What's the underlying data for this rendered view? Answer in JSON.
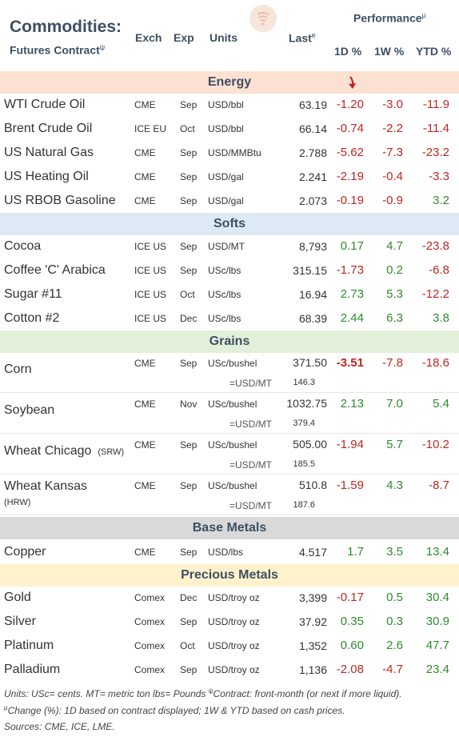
{
  "header": {
    "title": "Commodities:",
    "subtitle": "Futures Contract",
    "subtitle_mark": "ψ",
    "performance": "Performance",
    "performance_mark": "μ",
    "col_exch": "Exch",
    "col_exp": "Exp",
    "col_units": "Units",
    "col_last": "Last",
    "col_last_mark": "e",
    "col_1d": "1D %",
    "col_1w": "1W %",
    "col_ytd": "YTD %"
  },
  "colors": {
    "energy": "#fce0d2",
    "softs": "#ddeaf5",
    "grains": "#e2efd9",
    "base_metals": "#d9d9d9",
    "precious_metals": "#fff2cc",
    "negative": "#c0271f",
    "positive": "#2e8b2e"
  },
  "sections": {
    "energy": "Energy",
    "softs": "Softs",
    "grains": "Grains",
    "base_metals": "Base Metals",
    "precious_metals": "Precious Metals"
  },
  "energy": [
    {
      "name": "WTI Crude Oil",
      "exch": "CME",
      "exp": "Sep",
      "units": "USD/bbl",
      "last": "63.19",
      "d1": "-1.20",
      "w1": "-3.0",
      "ytd": "-11.9"
    },
    {
      "name": "Brent Crude Oil",
      "exch": "ICE EU",
      "exp": "Oct",
      "units": "USD/bbl",
      "last": "66.14",
      "d1": "-0.74",
      "w1": "-2.2",
      "ytd": "-11.4"
    },
    {
      "name": "US Natural Gas",
      "exch": "CME",
      "exp": "Sep",
      "units": "USD/MMBtu",
      "last": "2.788",
      "d1": "-5.62",
      "w1": "-7.3",
      "ytd": "-23.2"
    },
    {
      "name": "US Heating Oil",
      "exch": "CME",
      "exp": "Sep",
      "units": "USD/gal",
      "last": "2.241",
      "d1": "-2.19",
      "w1": "-0.4",
      "ytd": "-3.3"
    },
    {
      "name": "US RBOB Gasoline",
      "exch": "CME",
      "exp": "Sep",
      "units": "USD/gal",
      "last": "2.073",
      "d1": "-0.19",
      "w1": "-0.9",
      "ytd": "3.2"
    }
  ],
  "softs": [
    {
      "name": "Cocoa",
      "exch": "ICE US",
      "exp": "Sep",
      "units": "USD/MT",
      "last": "8,793",
      "d1": "0.17",
      "w1": "4.7",
      "ytd": "-23.8"
    },
    {
      "name": "Coffee 'C' Arabica",
      "exch": "ICE US",
      "exp": "Sep",
      "units": "USc/lbs",
      "last": "315.15",
      "d1": "-1.73",
      "w1": "0.2",
      "ytd": "-6.8"
    },
    {
      "name": "Sugar #11",
      "exch": "ICE US",
      "exp": "Oct",
      "units": "USc/lbs",
      "last": "16.94",
      "d1": "2.73",
      "w1": "5.3",
      "ytd": "-12.2"
    },
    {
      "name": "Cotton #2",
      "exch": "ICE US",
      "exp": "Dec",
      "units": "USc/lbs",
      "last": "68.39",
      "d1": "2.44",
      "w1": "6.3",
      "ytd": "3.8"
    }
  ],
  "grains": [
    {
      "name": "Corn",
      "tag": "",
      "exch": "CME",
      "exp": "Sep",
      "units": "USc/bushel",
      "last": "371.50",
      "d1": "-3.51",
      "w1": "-7.8",
      "ytd": "-18.6",
      "sub_label": "=USD/MT",
      "sub_value": "146.3"
    },
    {
      "name": "Soybean",
      "tag": "",
      "exch": "CME",
      "exp": "Nov",
      "units": "USc/bushel",
      "last": "1032.75",
      "d1": "2.13",
      "w1": "7.0",
      "ytd": "5.4",
      "sub_label": "=USD/MT",
      "sub_value": "379.4"
    },
    {
      "name": "Wheat Chicago",
      "tag": "(SRW)",
      "exch": "CME",
      "exp": "Sep",
      "units": "USc/bushel",
      "last": "505.00",
      "d1": "-1.94",
      "w1": "5.7",
      "ytd": "-10.2",
      "sub_label": "=USD/MT",
      "sub_value": "185.5"
    },
    {
      "name": "Wheat Kansas",
      "tag": "(HRW)",
      "exch": "CME",
      "exp": "Sep",
      "units": "USc/bushel",
      "last": "510.8",
      "d1": "-1.59",
      "w1": "4.3",
      "ytd": "-8.7",
      "sub_label": "=USD/MT",
      "sub_value": "187.6"
    }
  ],
  "base_metals": [
    {
      "name": "Copper",
      "exch": "CME",
      "exp": "Sep",
      "units": "USD/lbs",
      "last": "4.517",
      "d1": "1.7",
      "w1": "3.5",
      "ytd": "13.4"
    }
  ],
  "precious_metals": [
    {
      "name": "Gold",
      "exch": "Comex",
      "exp": "Dec",
      "units": "USD/troy oz",
      "last": "3,399",
      "d1": "-0.17",
      "w1": "0.5",
      "ytd": "30.4"
    },
    {
      "name": "Silver",
      "exch": "Comex",
      "exp": "Sep",
      "units": "USD/troy oz",
      "last": "37.92",
      "d1": "0.35",
      "w1": "0.3",
      "ytd": "30.9"
    },
    {
      "name": "Platinum",
      "exch": "Comex",
      "exp": "Oct",
      "units": "USD/troy oz",
      "last": "1,352",
      "d1": "0.60",
      "w1": "2.6",
      "ytd": "47.7"
    },
    {
      "name": "Palladium",
      "exch": "Comex",
      "exp": "Sep",
      "units": "USD/troy oz",
      "last": "1,136",
      "d1": "-2.08",
      "w1": "-4.7",
      "ytd": "23.4"
    }
  ],
  "footer": {
    "line1_start": "Units: USc= cents.  MT= metric ton   lbs= Pounds  ",
    "line1_mark": "ψ",
    "line1_end": "Contract: front-month (or next if more liquid).",
    "line2_mark": "μ",
    "line2_end": "Change (%): 1D based on contract displayed; 1W & YTD based on cash prices.",
    "line3": "Sources: CME, ICE, LME."
  }
}
